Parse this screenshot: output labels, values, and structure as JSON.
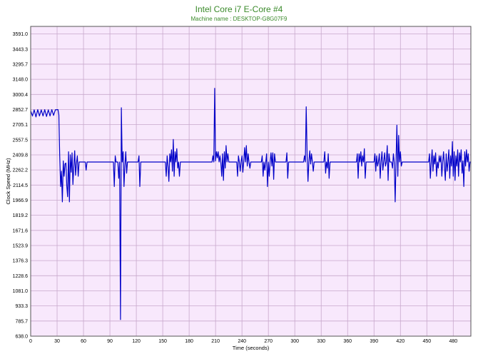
{
  "title": "Intel Core i7 E-Core #4",
  "subtitle": "Machine name : DESKTOP-G8G07F9",
  "colors": {
    "plot_background": "#f8e8fc",
    "grid": "#c8a8cc",
    "series": "#0000c8",
    "title": "#3a8a2a"
  },
  "chart_data": {
    "type": "line",
    "title": "Intel Core i7 E-Core #4",
    "subtitle": "Machine name : DESKTOP-G8G07F9",
    "xlabel": "Time (seconds)",
    "ylabel": "Clock Speed (MHz)",
    "xlim": [
      0,
      500
    ],
    "ylim": [
      638.0,
      3665
    ],
    "grid": true,
    "x_ticks": [
      "0",
      "30",
      "60",
      "90",
      "120",
      "150",
      "180",
      "210",
      "240",
      "270",
      "300",
      "330",
      "360",
      "390",
      "420",
      "450",
      "480"
    ],
    "y_ticks": [
      "638.0",
      "785.7",
      "933.3",
      "1081.0",
      "1228.6",
      "1376.3",
      "1523.9",
      "1671.6",
      "1819.2",
      "1966.9",
      "2114.5",
      "2262.2",
      "2409.8",
      "2557.5",
      "2705.1",
      "2852.7",
      "3000.4",
      "3148.0",
      "3295.7",
      "3443.3",
      "3591.0"
    ],
    "series": [
      {
        "values": [
          [
            0,
            2840
          ],
          [
            2,
            2790
          ],
          [
            4,
            2850
          ],
          [
            6,
            2780
          ],
          [
            8,
            2852
          ],
          [
            10,
            2790
          ],
          [
            12,
            2850
          ],
          [
            14,
            2790
          ],
          [
            16,
            2852
          ],
          [
            18,
            2785
          ],
          [
            20,
            2850
          ],
          [
            22,
            2790
          ],
          [
            24,
            2852
          ],
          [
            26,
            2795
          ],
          [
            28,
            2850
          ],
          [
            30,
            2852
          ],
          [
            31,
            2852
          ],
          [
            32,
            2800
          ],
          [
            33,
            2400
          ],
          [
            34,
            2100
          ],
          [
            35,
            2250
          ],
          [
            36,
            1950
          ],
          [
            37,
            2350
          ],
          [
            38,
            2200
          ],
          [
            39,
            2320
          ],
          [
            40,
            2330
          ],
          [
            41,
            2110
          ],
          [
            42,
            2000
          ],
          [
            43,
            2440
          ],
          [
            44,
            1950
          ],
          [
            45,
            2410
          ],
          [
            46,
            2240
          ],
          [
            47,
            2430
          ],
          [
            48,
            2120
          ],
          [
            49,
            2300
          ],
          [
            50,
            2450
          ],
          [
            51,
            2210
          ],
          [
            52,
            2330
          ],
          [
            53,
            2400
          ],
          [
            54,
            2200
          ],
          [
            55,
            2340
          ],
          [
            56,
            2340
          ],
          [
            60,
            2340
          ],
          [
            62,
            2340
          ],
          [
            63,
            2260
          ],
          [
            64,
            2340
          ],
          [
            65,
            2340
          ],
          [
            90,
            2340
          ],
          [
            94,
            2340
          ],
          [
            95,
            2100
          ],
          [
            96,
            2400
          ],
          [
            97,
            2340
          ],
          [
            99,
            2340
          ],
          [
            100,
            2180
          ],
          [
            101,
            2340
          ],
          [
            102,
            800
          ],
          [
            103,
            2870
          ],
          [
            104,
            2340
          ],
          [
            105,
            2440
          ],
          [
            106,
            2100
          ],
          [
            107,
            2300
          ],
          [
            108,
            2440
          ],
          [
            109,
            2230
          ],
          [
            110,
            2340
          ],
          [
            122,
            2340
          ],
          [
            123,
            2400
          ],
          [
            124,
            2100
          ],
          [
            125,
            2340
          ],
          [
            150,
            2340
          ],
          [
            153,
            2340
          ],
          [
            154,
            2200
          ],
          [
            155,
            2400
          ],
          [
            156,
            2300
          ],
          [
            157,
            2150
          ],
          [
            158,
            2420
          ],
          [
            159,
            2340
          ],
          [
            160,
            2460
          ],
          [
            161,
            2250
          ],
          [
            162,
            2560
          ],
          [
            163,
            2200
          ],
          [
            164,
            2440
          ],
          [
            165,
            2340
          ],
          [
            166,
            2470
          ],
          [
            167,
            2280
          ],
          [
            168,
            2340
          ],
          [
            169,
            2200
          ],
          [
            170,
            2340
          ],
          [
            206,
            2340
          ],
          [
            207,
            2400
          ],
          [
            208,
            2340
          ],
          [
            209,
            3060
          ],
          [
            210,
            2350
          ],
          [
            211,
            2440
          ],
          [
            212,
            2380
          ],
          [
            213,
            2440
          ],
          [
            214,
            2340
          ],
          [
            215,
            2400
          ],
          [
            216,
            2340
          ],
          [
            217,
            2200
          ],
          [
            218,
            2420
          ],
          [
            219,
            2160
          ],
          [
            220,
            2440
          ],
          [
            221,
            2280
          ],
          [
            222,
            2500
          ],
          [
            223,
            2340
          ],
          [
            224,
            2420
          ],
          [
            225,
            2340
          ],
          [
            226,
            2340
          ],
          [
            234,
            2340
          ],
          [
            235,
            2200
          ],
          [
            236,
            2400
          ],
          [
            237,
            2340
          ],
          [
            238,
            2250
          ],
          [
            239,
            2340
          ],
          [
            240,
            2400
          ],
          [
            241,
            2240
          ],
          [
            242,
            2340
          ],
          [
            243,
            2480
          ],
          [
            244,
            2340
          ],
          [
            245,
            2500
          ],
          [
            246,
            2300
          ],
          [
            247,
            2420
          ],
          [
            248,
            2340
          ],
          [
            249,
            2280
          ],
          [
            250,
            2340
          ],
          [
            262,
            2340
          ],
          [
            263,
            2400
          ],
          [
            264,
            2200
          ],
          [
            265,
            2340
          ],
          [
            266,
            2260
          ],
          [
            267,
            2340
          ],
          [
            268,
            2420
          ],
          [
            269,
            2100
          ],
          [
            270,
            2340
          ],
          [
            271,
            2200
          ],
          [
            272,
            2340
          ],
          [
            273,
            2430
          ],
          [
            274,
            2300
          ],
          [
            275,
            2430
          ],
          [
            276,
            2170
          ],
          [
            277,
            2420
          ],
          [
            278,
            2340
          ],
          [
            290,
            2340
          ],
          [
            291,
            2430
          ],
          [
            292,
            2180
          ],
          [
            293,
            2340
          ],
          [
            294,
            2340
          ],
          [
            310,
            2340
          ],
          [
            311,
            2400
          ],
          [
            312,
            2340
          ],
          [
            313,
            2880
          ],
          [
            314,
            2400
          ],
          [
            315,
            2150
          ],
          [
            316,
            2340
          ],
          [
            317,
            2450
          ],
          [
            318,
            2320
          ],
          [
            319,
            2420
          ],
          [
            320,
            2340
          ],
          [
            321,
            2250
          ],
          [
            322,
            2340
          ],
          [
            333,
            2340
          ],
          [
            334,
            2440
          ],
          [
            335,
            2230
          ],
          [
            336,
            2340
          ],
          [
            337,
            2280
          ],
          [
            338,
            2420
          ],
          [
            339,
            2180
          ],
          [
            340,
            2340
          ],
          [
            370,
            2340
          ],
          [
            371,
            2420
          ],
          [
            372,
            2180
          ],
          [
            373,
            2420
          ],
          [
            374,
            2340
          ],
          [
            375,
            2440
          ],
          [
            376,
            2300
          ],
          [
            377,
            2400
          ],
          [
            378,
            2340
          ],
          [
            379,
            2470
          ],
          [
            380,
            2180
          ],
          [
            381,
            2340
          ],
          [
            390,
            2340
          ],
          [
            391,
            2420
          ],
          [
            392,
            2250
          ],
          [
            393,
            2400
          ],
          [
            394,
            2300
          ],
          [
            395,
            2340
          ],
          [
            396,
            2420
          ],
          [
            397,
            2180
          ],
          [
            398,
            2340
          ],
          [
            399,
            2440
          ],
          [
            400,
            2260
          ],
          [
            401,
            2340
          ],
          [
            402,
            2430
          ],
          [
            403,
            2300
          ],
          [
            404,
            2340
          ],
          [
            405,
            2500
          ],
          [
            406,
            2160
          ],
          [
            407,
            2420
          ],
          [
            408,
            2340
          ],
          [
            410,
            2340
          ],
          [
            411,
            2280
          ],
          [
            412,
            2420
          ],
          [
            413,
            2340
          ],
          [
            414,
            1950
          ],
          [
            415,
            2340
          ],
          [
            416,
            2700
          ],
          [
            417,
            2200
          ],
          [
            418,
            2600
          ],
          [
            419,
            2340
          ],
          [
            420,
            2440
          ],
          [
            421,
            2300
          ],
          [
            422,
            2340
          ],
          [
            423,
            2340
          ],
          [
            452,
            2340
          ],
          [
            453,
            2420
          ],
          [
            454,
            2180
          ],
          [
            455,
            2340
          ],
          [
            456,
            2460
          ],
          [
            457,
            2250
          ],
          [
            458,
            2400
          ],
          [
            459,
            2320
          ],
          [
            460,
            2430
          ],
          [
            461,
            2200
          ],
          [
            462,
            2340
          ],
          [
            463,
            2280
          ],
          [
            464,
            2400
          ],
          [
            465,
            2340
          ],
          [
            466,
            2400
          ],
          [
            467,
            2200
          ],
          [
            468,
            2340
          ],
          [
            469,
            2440
          ],
          [
            470,
            2300
          ],
          [
            471,
            2160
          ],
          [
            472,
            2420
          ],
          [
            473,
            2250
          ],
          [
            474,
            2340
          ],
          [
            475,
            2460
          ],
          [
            476,
            2180
          ],
          [
            477,
            2400
          ],
          [
            478,
            2300
          ],
          [
            479,
            2540
          ],
          [
            480,
            2200
          ],
          [
            481,
            2440
          ],
          [
            482,
            2160
          ],
          [
            483,
            2400
          ],
          [
            484,
            2300
          ],
          [
            485,
            2460
          ],
          [
            486,
            2200
          ],
          [
            487,
            2430
          ],
          [
            488,
            2340
          ],
          [
            489,
            2460
          ],
          [
            490,
            2230
          ],
          [
            491,
            2350
          ],
          [
            492,
            2100
          ],
          [
            493,
            2440
          ],
          [
            494,
            2300
          ],
          [
            495,
            2460
          ],
          [
            496,
            2340
          ],
          [
            497,
            2420
          ],
          [
            498,
            2250
          ],
          [
            499,
            2340
          ],
          [
            500,
            2340
          ]
        ]
      }
    ]
  }
}
